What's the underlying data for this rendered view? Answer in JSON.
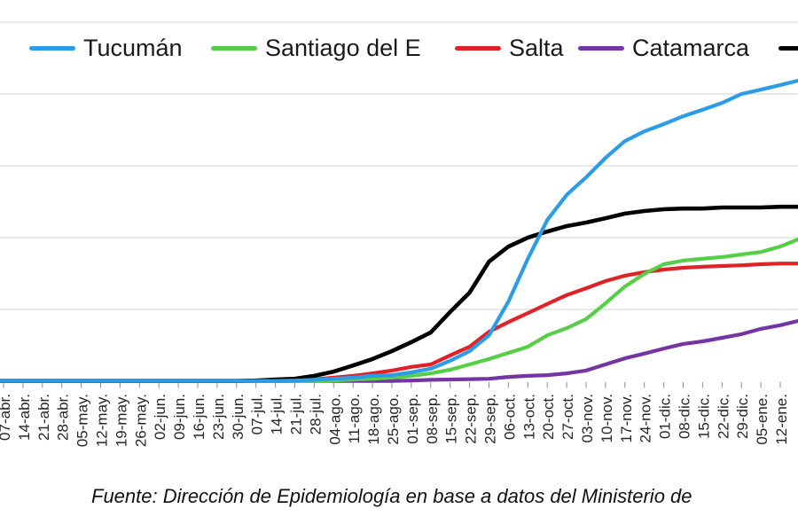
{
  "chart_data": {
    "type": "line",
    "title": "",
    "xlabel": "",
    "ylabel": "",
    "axis_note": "y-axis tick labels are cropped out of the frame; values below are in relative units where one gridline interval = 20 units. Last value of each series is the curve position at the right image edge (beyond the 12-ene. tick).",
    "gridline_values": [
      20,
      40,
      60,
      80,
      100
    ],
    "legend_position": "top",
    "grid": "horizontal",
    "categories": [
      "07-abr.",
      "14-abr.",
      "21-abr.",
      "28-abr.",
      "05-may.",
      "12-may.",
      "19-may.",
      "26-may.",
      "02-jun.",
      "09-jun.",
      "16-jun.",
      "23-jun.",
      "30-jun.",
      "07-jul.",
      "14-jul.",
      "21-jul.",
      "28-jul.",
      "04-ago.",
      "11-ago.",
      "18-ago.",
      "25-ago.",
      "01-sep.",
      "08-sep.",
      "15-sep.",
      "22-sep.",
      "29-sep.",
      "06-oct.",
      "13-oct.",
      "20-oct.",
      "27-oct.",
      "03-nov.",
      "10-nov.",
      "17-nov.",
      "24-nov.",
      "01-dic.",
      "08-dic.",
      "15-dic.",
      "22-dic.",
      "29-dic.",
      "05-ene.",
      "12-ene."
    ],
    "series": [
      {
        "name": "Tucumán",
        "color": "#2b9ce5",
        "label_cropped": false,
        "values": [
          0.1,
          0.1,
          0.1,
          0.1,
          0.1,
          0.1,
          0.1,
          0.1,
          0.1,
          0.1,
          0.1,
          0.1,
          0.1,
          0.1,
          0.1,
          0.2,
          0.4,
          0.7,
          1.0,
          1.5,
          1.7,
          2.5,
          3.5,
          5.7,
          8.4,
          12.8,
          22.2,
          34.1,
          44.9,
          51.9,
          56.8,
          62.2,
          66.9,
          69.6,
          71.6,
          73.8,
          75.6,
          77.5,
          80.0,
          81.2,
          82.5,
          83.7
        ]
      },
      {
        "name": "Santiago del E",
        "color": "#57ce47",
        "label_cropped": false,
        "values": [
          0.1,
          0.1,
          0.1,
          0.1,
          0.1,
          0.1,
          0.1,
          0.1,
          0.1,
          0.1,
          0.1,
          0.1,
          0.1,
          0.1,
          0.1,
          0.1,
          0.1,
          0.2,
          0.5,
          0.7,
          1.0,
          1.5,
          2.2,
          3.2,
          4.7,
          6.2,
          7.9,
          9.6,
          12.8,
          14.8,
          17.3,
          21.7,
          26.4,
          29.9,
          32.6,
          33.6,
          34.1,
          34.6,
          35.3,
          36.0,
          37.5,
          39.5
        ]
      },
      {
        "name": "Salta",
        "color": "#df2227",
        "label_cropped": false,
        "values": [
          0.1,
          0.1,
          0.1,
          0.1,
          0.1,
          0.1,
          0.1,
          0.1,
          0.1,
          0.1,
          0.1,
          0.1,
          0.1,
          0.1,
          0.1,
          0.1,
          0.5,
          1.0,
          1.5,
          2.2,
          3.0,
          4.0,
          4.7,
          7.2,
          9.6,
          13.8,
          16.5,
          19.0,
          21.5,
          24.0,
          25.9,
          27.9,
          29.4,
          30.4,
          31.1,
          31.6,
          31.9,
          32.1,
          32.3,
          32.6,
          32.8,
          32.8
        ]
      },
      {
        "name": "Catamarca",
        "color": "#7434a4",
        "label_cropped": false,
        "values": [
          0.1,
          0.1,
          0.1,
          0.1,
          0.1,
          0.1,
          0.1,
          0.1,
          0.1,
          0.1,
          0.1,
          0.1,
          0.1,
          0.1,
          0.1,
          0.1,
          0.1,
          0.1,
          0.1,
          0.1,
          0.1,
          0.2,
          0.4,
          0.5,
          0.6,
          0.7,
          1.2,
          1.5,
          1.7,
          2.2,
          3.0,
          4.7,
          6.4,
          7.7,
          9.1,
          10.4,
          11.1,
          12.1,
          13.1,
          14.6,
          15.6,
          16.8
        ]
      },
      {
        "name": "",
        "color": "#000000",
        "label_cropped": true,
        "values": [
          0.1,
          0.1,
          0.1,
          0.1,
          0.1,
          0.1,
          0.1,
          0.1,
          0.1,
          0.1,
          0.1,
          0.1,
          0.1,
          0.2,
          0.5,
          0.7,
          1.5,
          2.7,
          4.4,
          6.2,
          8.4,
          10.9,
          13.6,
          19.3,
          24.7,
          33.3,
          37.5,
          40.0,
          41.7,
          43.2,
          44.2,
          45.4,
          46.7,
          47.4,
          47.9,
          48.1,
          48.1,
          48.4,
          48.4,
          48.4,
          48.6,
          48.6
        ]
      }
    ],
    "source_note": "Fuente: Dirección de Epidemiología en base a datos del Ministerio de"
  },
  "style_colors": {
    "gridline": "#d9d9d9",
    "tick": "#8c8c8c",
    "x_label_text": "#262626"
  }
}
